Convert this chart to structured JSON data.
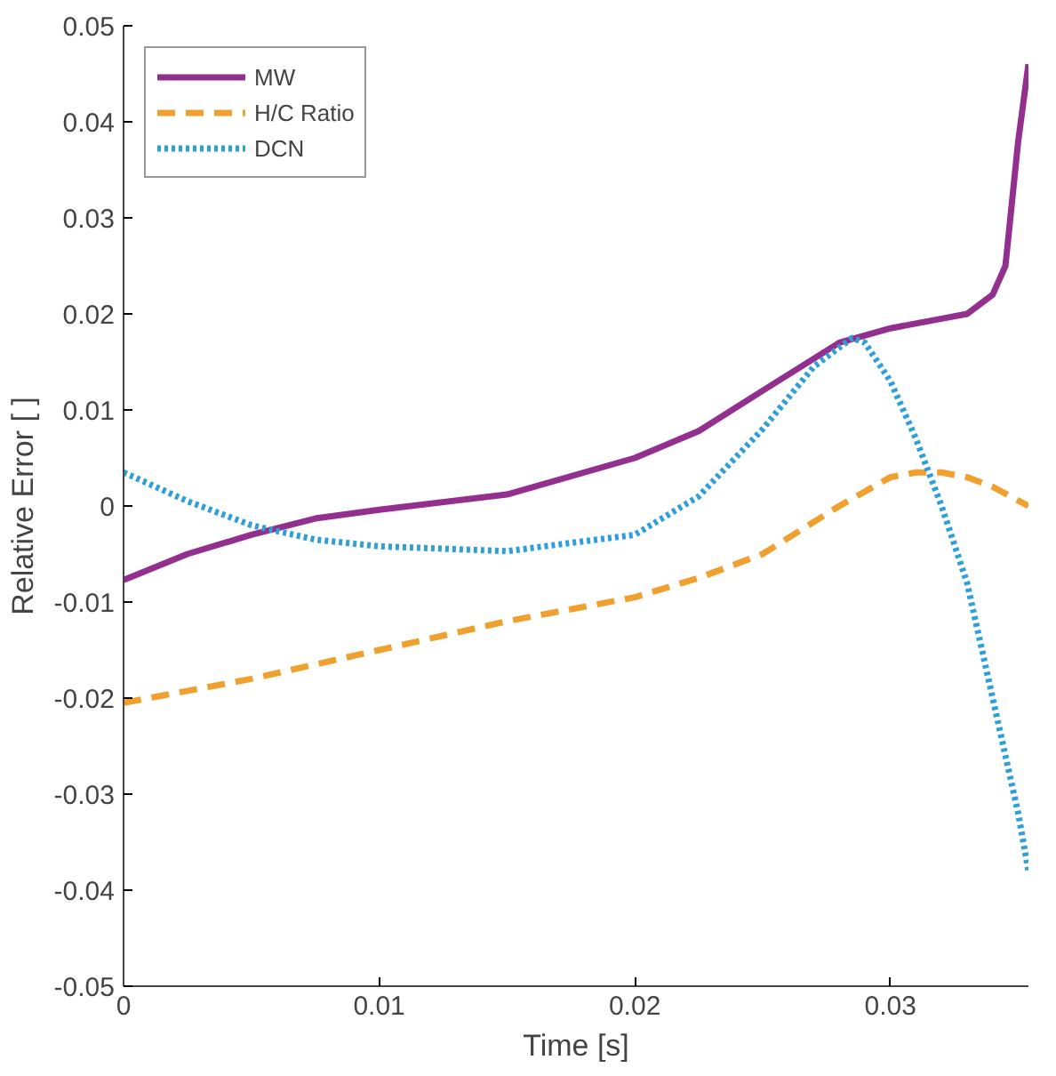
{
  "chart_data": {
    "type": "line",
    "xlabel": "Time [s]",
    "ylabel": "Relative Error [ ]",
    "xlim": [
      0,
      0.0354
    ],
    "ylim": [
      -0.05,
      0.05
    ],
    "xticks": [
      0,
      0.01,
      0.02,
      0.03
    ],
    "yticks": [
      -0.05,
      -0.04,
      -0.03,
      -0.02,
      -0.01,
      0,
      0.01,
      0.02,
      0.03,
      0.04,
      0.05
    ],
    "grid": false,
    "legend": "top left",
    "series": [
      {
        "name": "MW",
        "color": "#93308f",
        "line_style": "solid",
        "x": [
          0,
          0.0025,
          0.005,
          0.0075,
          0.01,
          0.015,
          0.02,
          0.0225,
          0.025,
          0.028,
          0.03,
          0.032,
          0.033,
          0.034,
          0.0345,
          0.035,
          0.0354
        ],
        "values": [
          -0.0077,
          -0.005,
          -0.003,
          -0.0013,
          -0.0004,
          0.0012,
          0.005,
          0.0078,
          0.012,
          0.017,
          0.0185,
          0.0195,
          0.02,
          0.022,
          0.025,
          0.038,
          0.046
        ]
      },
      {
        "name": "H/C Ratio",
        "color": "#efa02f",
        "line_style": "dashed",
        "x": [
          0,
          0.005,
          0.01,
          0.015,
          0.02,
          0.0225,
          0.025,
          0.028,
          0.03,
          0.031,
          0.032,
          0.033,
          0.034,
          0.0354
        ],
        "values": [
          -0.0205,
          -0.018,
          -0.015,
          -0.012,
          -0.0095,
          -0.0075,
          -0.005,
          0,
          0.003,
          0.0035,
          0.0035,
          0.003,
          0.002,
          0
        ]
      },
      {
        "name": "DCN",
        "color": "#2e9fd8",
        "line_style": "dotted",
        "x": [
          0,
          0.0025,
          0.005,
          0.0075,
          0.01,
          0.015,
          0.02,
          0.0225,
          0.025,
          0.027,
          0.0285,
          0.029,
          0.03,
          0.031,
          0.032,
          0.033,
          0.034,
          0.035,
          0.0354
        ],
        "values": [
          0.0035,
          0.0005,
          -0.002,
          -0.0035,
          -0.0042,
          -0.0047,
          -0.003,
          0.001,
          0.008,
          0.0145,
          0.0175,
          0.017,
          0.013,
          0.007,
          0.0,
          -0.008,
          -0.02,
          -0.032,
          -0.038
        ]
      }
    ]
  }
}
